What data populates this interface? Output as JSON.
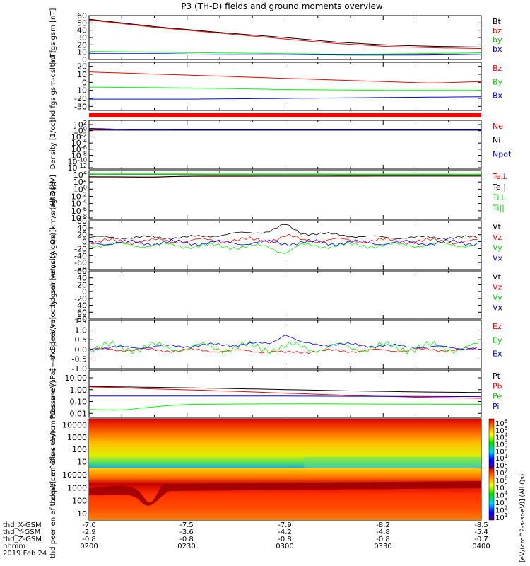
{
  "title": "P3 (TH-D) fields and ground moments overview",
  "date_label": "2019 Feb 24",
  "ephemeris": {
    "row_labels": [
      "thd_X-GSM",
      "thd_Y-GSM",
      "thd_Z-GSM",
      "hhmm"
    ],
    "columns": [
      {
        "x": "-7.0",
        "y": "-2.9",
        "z": "-0.8",
        "t": "0200"
      },
      {
        "x": "-7.5",
        "y": "-3.6",
        "z": "-0.8",
        "t": "0230"
      },
      {
        "x": "-7.9",
        "y": "-4.2",
        "z": "-0.8",
        "t": "0300"
      },
      {
        "x": "-8.2",
        "y": "-4.8",
        "z": "-0.8",
        "t": "0330"
      },
      {
        "x": "-8.5",
        "y": "-5.4",
        "z": "-0.7",
        "t": "0400"
      }
    ]
  },
  "colors": {
    "black": "#000000",
    "red": "#ff0000",
    "green": "#00ff00",
    "blue": "#0000ff",
    "dark_red": "#cc0000",
    "dark_green": "#00cc00"
  },
  "chart_data": [
    {
      "type": "line",
      "panel": "fgs_gsm",
      "ylabel": "thd fgs gsm [nT]",
      "ylim": [
        0,
        60
      ],
      "yticks": [
        "0",
        "10",
        "20",
        "30",
        "40",
        "50",
        "60"
      ],
      "xlim_minutes": [
        0,
        120
      ],
      "series": [
        {
          "name": "Bt",
          "color": "#000000",
          "x": [
            0,
            20,
            40,
            60,
            75,
            90,
            105,
            120
          ],
          "y": [
            55,
            45,
            37,
            30,
            24,
            20,
            18,
            17
          ]
        },
        {
          "name": "bz",
          "color": "#ff0000",
          "x": [
            0,
            20,
            40,
            60,
            75,
            90,
            105,
            120
          ],
          "y": [
            54,
            44,
            36,
            28,
            22,
            18,
            16,
            15
          ]
        },
        {
          "name": "by",
          "color": "#00ff00",
          "x": [
            0,
            20,
            40,
            60,
            80,
            100,
            120
          ],
          "y": [
            11,
            10,
            9,
            8,
            7,
            8,
            9
          ]
        },
        {
          "name": "bx",
          "color": "#0000ff",
          "x": [
            0,
            20,
            40,
            60,
            80,
            100,
            120
          ],
          "y": [
            8,
            8,
            7,
            7,
            6,
            6,
            7
          ]
        }
      ]
    },
    {
      "type": "line",
      "panel": "fgs_dsl",
      "ylabel": "thd fgs gsm-dsl [nT]",
      "ylim": [
        -35,
        25
      ],
      "yticks": [
        "-30",
        "-20",
        "-10",
        "0",
        "10",
        "20"
      ],
      "xlim_minutes": [
        0,
        120
      ],
      "series": [
        {
          "name": "Bz",
          "color": "#ff0000",
          "x": [
            0,
            30,
            60,
            90,
            105,
            120
          ],
          "y": [
            13,
            9,
            5,
            1,
            -1,
            1
          ]
        },
        {
          "name": "By",
          "color": "#00ff00",
          "x": [
            0,
            30,
            60,
            90,
            120
          ],
          "y": [
            -6,
            -7,
            -9,
            -10,
            -10
          ]
        },
        {
          "name": "Bx",
          "color": "#0000ff",
          "x": [
            0,
            30,
            60,
            90,
            120
          ],
          "y": [
            -21,
            -21,
            -20,
            -19,
            -18
          ]
        }
      ]
    },
    {
      "type": "line",
      "panel": "density",
      "ylabel": "Density [1/cc]",
      "yscale": "log",
      "yticks": [
        "10^2",
        "10^0",
        "10^-2",
        "10^-4",
        "10^-6",
        "10^-8",
        "10^-10",
        "10^-12"
      ],
      "xlim_minutes": [
        0,
        120
      ],
      "series": [
        {
          "name": "Ne",
          "color": "#cc0000",
          "x": [
            0,
            5,
            10,
            120
          ],
          "y": [
            0.6,
            0.4,
            0.3,
            0.3
          ]
        },
        {
          "name": "Ni",
          "color": "#000000",
          "x": [
            0,
            120
          ],
          "y": [
            0.3,
            0.3
          ]
        },
        {
          "name": "Npot",
          "color": "#0000ff",
          "x": [
            0,
            10,
            120
          ],
          "y": [
            1.0,
            0.5,
            0.4
          ]
        }
      ]
    },
    {
      "type": "line",
      "panel": "temperature",
      "ylabel": "magt3 [eV]",
      "yscale": "log",
      "yticks": [
        "10^4",
        "10^2",
        "10^0",
        "10^-2",
        "10^-4",
        "10^-6",
        "10^-8"
      ],
      "xlim_minutes": [
        0,
        120
      ],
      "series": [
        {
          "name": "Te⊥",
          "color": "#ff0000",
          "x": [
            0,
            20,
            30,
            120
          ],
          "y": [
            600,
            500,
            900,
            1000
          ]
        },
        {
          "name": "Te||",
          "color": "#000000",
          "x": [
            0,
            20,
            30,
            120
          ],
          "y": [
            700,
            600,
            1000,
            1100
          ]
        },
        {
          "name": "Ti⊥",
          "color": "#00cc00",
          "x": [
            0,
            120
          ],
          "y": [
            3000,
            2500
          ]
        },
        {
          "name": "Ti||",
          "color": "#00ff00",
          "x": [
            0,
            120
          ],
          "y": [
            4000,
            3500
          ]
        }
      ]
    },
    {
      "type": "line",
      "panel": "peir_velocity",
      "ylabel": "thd peir velocity gsm [km/s (All Qs)]",
      "ylim": [
        -80,
        60
      ],
      "yticks": [
        "-80",
        "-60",
        "-40",
        "-20",
        "0",
        "20",
        "40",
        "60"
      ],
      "xlim_minutes": [
        0,
        120
      ],
      "series": [
        {
          "name": "Vt",
          "color": "#000000",
          "x": [
            0,
            30,
            55,
            60,
            65,
            90,
            120
          ],
          "y": [
            12,
            12,
            30,
            48,
            25,
            12,
            12
          ]
        },
        {
          "name": "Vz",
          "color": "#ff0000",
          "x": [
            0,
            55,
            60,
            65,
            120
          ],
          "y": [
            0,
            5,
            15,
            5,
            0
          ]
        },
        {
          "name": "Vy",
          "color": "#00ff00",
          "x": [
            0,
            55,
            60,
            65,
            120
          ],
          "y": [
            -8,
            -15,
            -30,
            -12,
            -8
          ]
        },
        {
          "name": "Vx",
          "color": "#0000ff",
          "x": [
            0,
            120
          ],
          "y": [
            -3,
            -3
          ]
        }
      ]
    },
    {
      "type": "line",
      "panel": "peer_velocity",
      "ylabel": "thd peer velocity gsm [km/s (All Qs)]",
      "ylim": [
        -80,
        60
      ],
      "yticks": [
        "-80",
        "-60",
        "-40",
        "-20",
        "0",
        "20",
        "40",
        "60"
      ],
      "xlim_minutes": [
        0,
        120
      ],
      "series": [
        {
          "name": "Vt",
          "color": "#000000",
          "x": [],
          "y": []
        },
        {
          "name": "Vz",
          "color": "#ff0000",
          "x": [],
          "y": []
        },
        {
          "name": "Vy",
          "color": "#00ff00",
          "x": [],
          "y": []
        },
        {
          "name": "Vx",
          "color": "#0000ff",
          "x": [],
          "y": []
        }
      ]
    },
    {
      "type": "line",
      "panel": "efield",
      "ylabel": "E=-VxB [mV/m]",
      "ylim": [
        -1.0,
        1.5
      ],
      "yticks": [
        "-1.0",
        "-0.5",
        "0.0",
        "0.5",
        "1.0",
        "1.5"
      ],
      "xlim_minutes": [
        0,
        120
      ],
      "series": [
        {
          "name": "Ez",
          "color": "#ff0000",
          "x": [
            0,
            55,
            60,
            65,
            120
          ],
          "y": [
            0,
            -0.1,
            -0.2,
            -0.1,
            0
          ]
        },
        {
          "name": "Ey",
          "color": "#00ff00",
          "x": [
            0,
            120
          ],
          "y": [
            0.1,
            0.1
          ]
        },
        {
          "name": "Ex",
          "color": "#0000ff",
          "x": [
            0,
            55,
            60,
            65,
            120
          ],
          "y": [
            0.05,
            0.3,
            0.8,
            0.3,
            0.05
          ]
        }
      ]
    },
    {
      "type": "line",
      "panel": "pressure",
      "ylabel": "Pressure [nPa]",
      "yscale": "log",
      "yticks": [
        "10.00",
        "1.00",
        "0.10",
        "0.01"
      ],
      "xlim_minutes": [
        0,
        120
      ],
      "series": [
        {
          "name": "Pt",
          "color": "#000000",
          "x": [
            0,
            20,
            40,
            60,
            80,
            100,
            120
          ],
          "y": [
            1.3,
            1.1,
            0.9,
            0.7,
            0.55,
            0.45,
            0.4
          ]
        },
        {
          "name": "Pb",
          "color": "#ff0000",
          "x": [
            0,
            20,
            40,
            60,
            80,
            100,
            120
          ],
          "y": [
            1.2,
            0.8,
            0.55,
            0.35,
            0.22,
            0.16,
            0.13
          ]
        },
        {
          "name": "Pe",
          "color": "#00ff00",
          "x": [
            0,
            10,
            20,
            30,
            60,
            120
          ],
          "y": [
            0.015,
            0.012,
            0.025,
            0.04,
            0.045,
            0.04
          ]
        },
        {
          "name": "Pi",
          "color": "#0000ff",
          "x": [
            0,
            60,
            120
          ],
          "y": [
            0.2,
            0.2,
            0.18
          ]
        }
      ]
    },
    {
      "type": "heatmap",
      "panel": "peir_spectrogram",
      "ylabel": "thd peir en eflux eV/(cm^2-s-sr-eV)",
      "yticks": [
        "10",
        "100",
        "1000",
        "10000"
      ],
      "colorbar_ticks": [
        "10^6",
        "10^5",
        "10^4",
        "10^3",
        "10^2",
        "10^1",
        "10^0"
      ],
      "colorbar_label": "[eV/(cm^2-s-sr-eV)] (All Qs)"
    },
    {
      "type": "heatmap",
      "panel": "peer_spectrogram",
      "ylabel": "thd peer en eflux eV/(cm^2-s-sr-eV)",
      "yticks": [
        "10",
        "100",
        "1000",
        "10000"
      ],
      "colorbar_ticks": [
        "10^7",
        "10^6",
        "10^5",
        "10^4",
        "10^3",
        "10^2",
        "10^1"
      ],
      "colorbar_label": "[eV/(cm^2-s-sr-eV)] (All Qs)"
    }
  ]
}
